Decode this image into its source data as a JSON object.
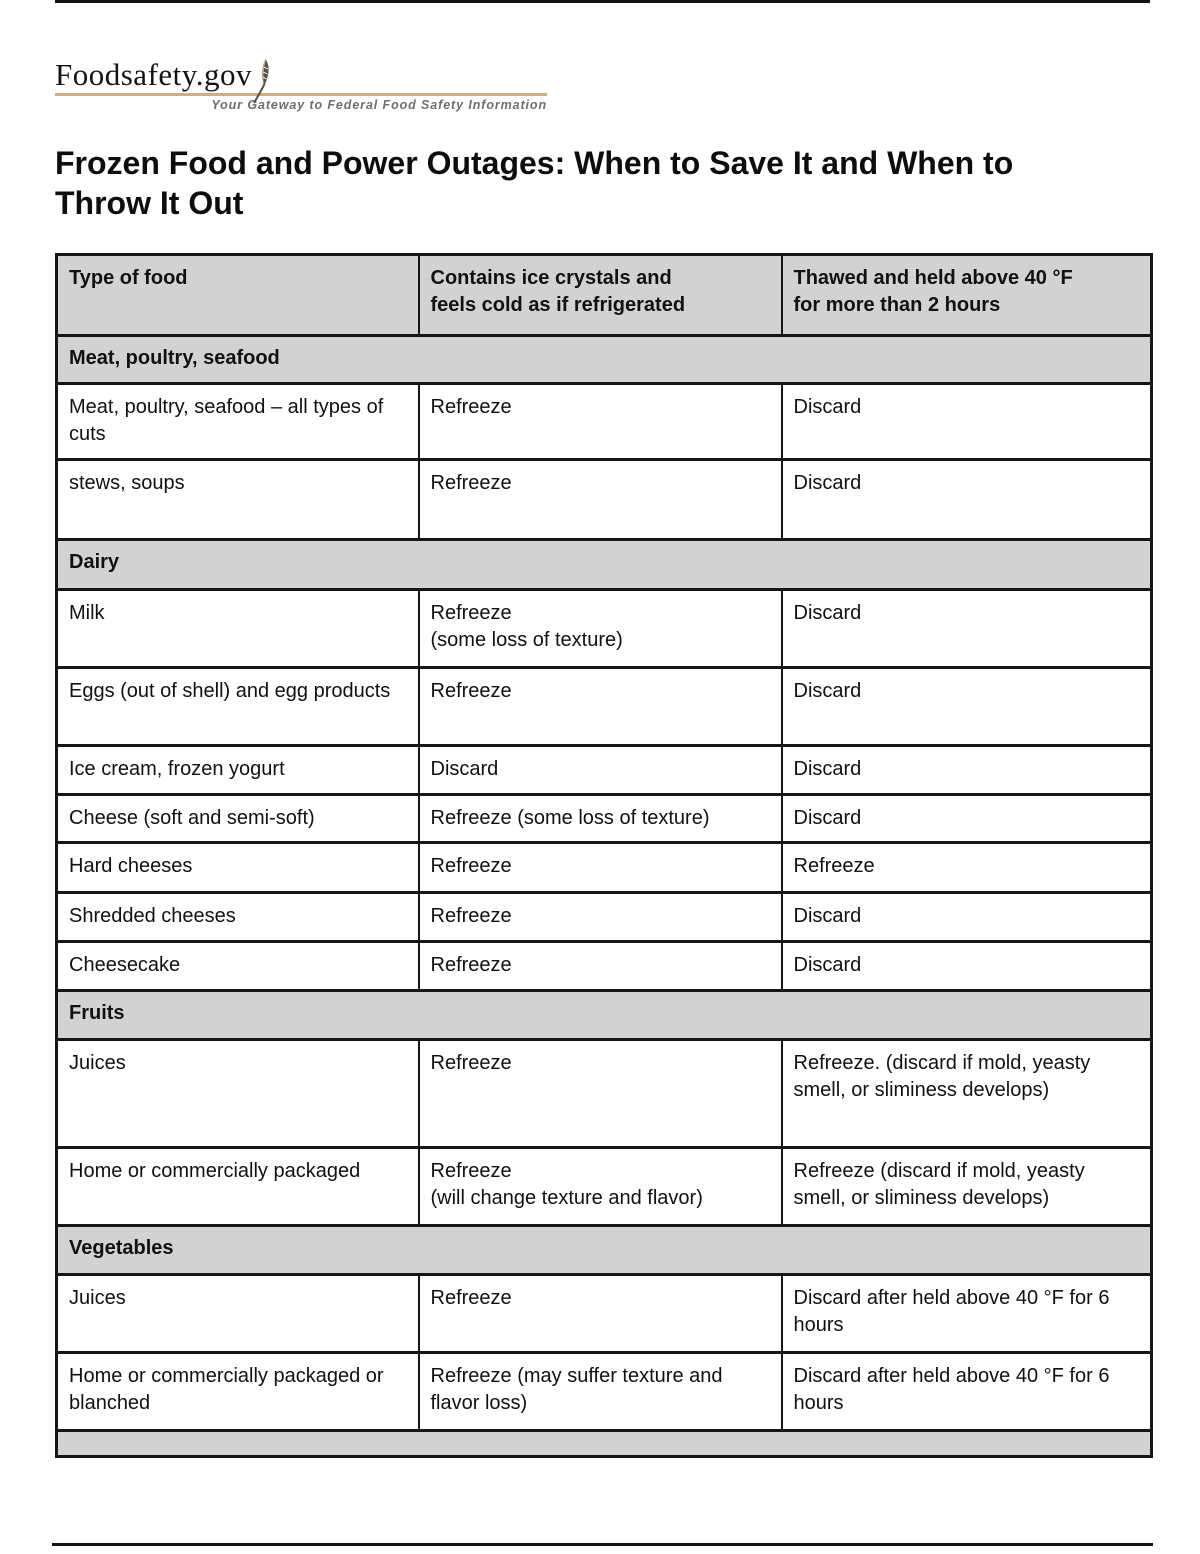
{
  "header": {
    "logo_text": "Foodsafety.gov",
    "tagline": "Your Gateway to Federal Food Safety Information"
  },
  "title": "Frozen Food and Power Outages: When to Save It and When to\nThrow It Out",
  "table": {
    "columns": [
      "Type of food",
      "Contains ice crystals and\nfeels cold as if refrigerated",
      "Thawed and held above 40 °F\nfor more than 2 hours"
    ],
    "rows": [
      {
        "type": "section",
        "label": "Meat, poultry, seafood"
      },
      {
        "type": "data",
        "cells": [
          "Meat, poultry, seafood – all types of cuts",
          "Refreeze",
          "Discard"
        ]
      },
      {
        "type": "data",
        "cells": [
          "stews, soups",
          "Refreeze",
          "Discard"
        ]
      },
      {
        "type": "section",
        "label": "Dairy"
      },
      {
        "type": "data",
        "cells": [
          "Milk",
          "Refreeze\n(some loss of texture)",
          "Discard"
        ]
      },
      {
        "type": "data",
        "cells": [
          "Eggs (out of shell) and egg products",
          "Refreeze",
          "Discard"
        ]
      },
      {
        "type": "data",
        "cells": [
          "Ice cream, frozen yogurt",
          "Discard",
          "Discard"
        ]
      },
      {
        "type": "data",
        "cells": [
          "Cheese (soft and semi-soft)",
          "Refreeze (some loss of texture)",
          "Discard"
        ]
      },
      {
        "type": "data",
        "cells": [
          "Hard cheeses",
          "Refreeze",
          "Refreeze"
        ]
      },
      {
        "type": "data",
        "cells": [
          "Shredded cheeses",
          "Refreeze",
          "Discard"
        ]
      },
      {
        "type": "data",
        "cells": [
          "Cheesecake",
          "Refreeze",
          "Discard"
        ]
      },
      {
        "type": "section",
        "label": "Fruits"
      },
      {
        "type": "data",
        "cells": [
          "Juices",
          "Refreeze",
          "Refreeze. (discard if mold, yeasty smell, or sliminess develops)"
        ]
      },
      {
        "type": "data",
        "cells": [
          "Home or commercially packaged",
          "Refreeze\n(will change texture and flavor)",
          "Refreeze (discard if mold, yeasty smell, or sliminess develops)"
        ]
      },
      {
        "type": "section",
        "label": "Vegetables"
      },
      {
        "type": "data",
        "cells": [
          "Juices",
          "Refreeze",
          "Discard after held above 40 °F for 6 hours"
        ]
      },
      {
        "type": "data",
        "cells": [
          "Home or commercially packaged or blanched",
          "Refreeze (may suffer texture and flavor loss)",
          "Discard after held above 40 °F for 6 hours"
        ]
      },
      {
        "type": "section",
        "label": ""
      }
    ]
  },
  "colors": {
    "table_section_fill": "#d2d2d2",
    "table_border": "#161616",
    "logo_underline": "#d2ae7c",
    "tagline_text": "#6e6e6e"
  }
}
